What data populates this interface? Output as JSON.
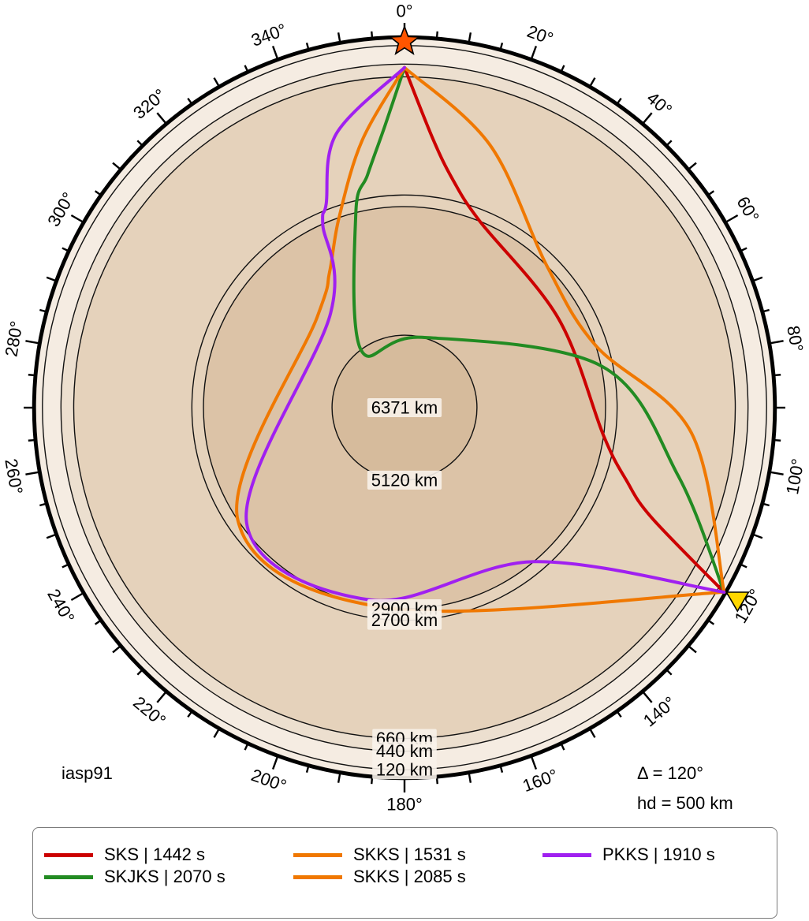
{
  "colors": {
    "crust_layer": "#f5ece2",
    "upper_mantle": "#ecdfcf",
    "lower_mantle": "#e5d2bb",
    "outer_core": "#dcc3a7",
    "inner_core": "#d6bb9c",
    "star_fill": "#ff5500",
    "receiver_fill": "#ffd700"
  },
  "model_label": "iasp91",
  "distance_label": "Δ = 120°",
  "depth_label": "hd = 500 km",
  "angle_ticks": [
    {
      "deg": 0,
      "label": "0°"
    },
    {
      "deg": 20,
      "label": "20°"
    },
    {
      "deg": 40,
      "label": "40°"
    },
    {
      "deg": 60,
      "label": "60°"
    },
    {
      "deg": 80,
      "label": "80°"
    },
    {
      "deg": 100,
      "label": "100°"
    },
    {
      "deg": 120,
      "label": "120°"
    },
    {
      "deg": 140,
      "label": "140°"
    },
    {
      "deg": 160,
      "label": "160°"
    },
    {
      "deg": 180,
      "label": "180°"
    },
    {
      "deg": 200,
      "label": "200°"
    },
    {
      "deg": 220,
      "label": "220°"
    },
    {
      "deg": 240,
      "label": "240°"
    },
    {
      "deg": 260,
      "label": "260°"
    },
    {
      "deg": 280,
      "label": "280°"
    },
    {
      "deg": 300,
      "label": "300°"
    },
    {
      "deg": 320,
      "label": "320°"
    },
    {
      "deg": 340,
      "label": "340°"
    }
  ],
  "depth_labels": {
    "d120": "120 km",
    "d440": "440 km",
    "d660": "660 km",
    "d2700": "2700 km",
    "d2900": "2900 km",
    "d5120": "5120 km",
    "d6371": "6371 km"
  },
  "source": {
    "epicentral_deg": 0,
    "depth_km": 500
  },
  "receiver": {
    "epicentral_deg": 120,
    "depth_km": 0
  },
  "legend": [
    {
      "label": "SKS | 1442 s",
      "color": "#cc0000"
    },
    {
      "label": "SKJKS | 2070 s",
      "color": "#228b22"
    },
    {
      "label": "SKKS | 1531 s",
      "color": "#f07800"
    },
    {
      "label": "SKKS | 2085 s",
      "color": "#f07800"
    },
    {
      "label": "PKKS | 1910 s",
      "color": "#a020f0"
    }
  ],
  "rays": [
    {
      "phase": "SKS",
      "color": "#cc0000",
      "points": [
        [
          0,
          500
        ],
        [
          6,
          1700
        ],
        [
          12,
          2350
        ],
        [
          22,
          2900
        ],
        [
          60,
          3300
        ],
        [
          98,
          2900
        ],
        [
          108,
          2350
        ],
        [
          114,
          1700
        ],
        [
          120,
          0
        ]
      ]
    },
    {
      "phase": "SKJKS",
      "color": "#228b22",
      "points": [
        [
          0,
          500
        ],
        [
          -4,
          1500
        ],
        [
          -9,
          2300
        ],
        [
          -14,
          2900
        ],
        [
          -37,
          5120
        ],
        [
          14,
          5120
        ],
        [
          78,
          2900
        ],
        [
          104,
          1500
        ],
        [
          120,
          0
        ]
      ]
    },
    {
      "phase": "SKKS",
      "color": "#f07800",
      "points": [
        [
          0,
          500
        ],
        [
          18,
          1600
        ],
        [
          45,
          2900
        ],
        [
          72,
          2900
        ],
        [
          95,
          1400
        ],
        [
          120,
          0
        ]
      ]
    },
    {
      "phase": "SKKS",
      "color": "#f07800",
      "points": [
        [
          0,
          500
        ],
        [
          -9,
          1700
        ],
        [
          -19,
          2900
        ],
        [
          -29,
          3700
        ],
        [
          -44,
          4200
        ],
        [
          -124,
          2900
        ],
        [
          -175,
          2900
        ],
        [
          120,
          0
        ]
      ]
    },
    {
      "phase": "PKKS",
      "color": "#a020f0",
      "points": [
        [
          0,
          500
        ],
        [
          -14,
          1500
        ],
        [
          -21,
          2600
        ],
        [
          -24,
          2900
        ],
        [
          -38,
          4300
        ],
        [
          -126,
          3000
        ],
        [
          -170,
          3000
        ],
        [
          -220,
          2900
        ],
        [
          120,
          0
        ]
      ]
    }
  ]
}
